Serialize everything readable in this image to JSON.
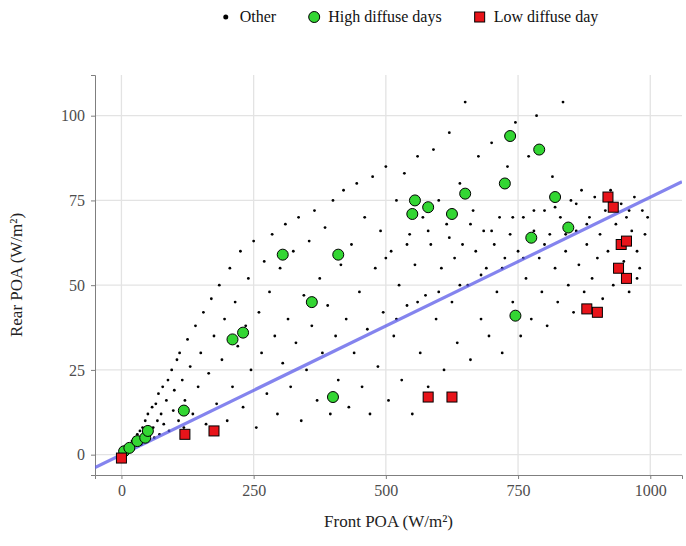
{
  "chart_data": {
    "type": "scatter",
    "x_label": "Front POA (W/m²)",
    "y_label": "Rear POA (W/m²)",
    "xlim": [
      -50,
      1060
    ],
    "ylim": [
      -6,
      112
    ],
    "xticks": [
      0,
      250,
      500,
      750,
      1000
    ],
    "yticks": [
      0,
      25,
      50,
      75,
      100
    ],
    "grid": true,
    "legend": "top",
    "series": [
      {
        "name": "Other",
        "color": "#000000",
        "marker": "dot",
        "x": [
          2,
          5,
          8,
          10,
          12,
          15,
          18,
          20,
          22,
          25,
          28,
          30,
          33,
          35,
          38,
          40,
          42,
          45,
          48,
          50,
          55,
          58,
          60,
          62,
          65,
          68,
          70,
          72,
          75,
          78,
          80,
          85,
          88,
          90,
          95,
          98,
          100,
          105,
          108,
          110,
          115,
          118,
          120,
          125,
          130,
          135,
          140,
          145,
          150,
          155,
          160,
          165,
          170,
          175,
          180,
          185,
          190,
          195,
          200,
          205,
          210,
          215,
          220,
          225,
          230,
          235,
          240,
          245,
          250,
          255,
          260,
          265,
          270,
          275,
          280,
          285,
          290,
          295,
          300,
          305,
          310,
          315,
          320,
          325,
          330,
          335,
          340,
          345,
          350,
          355,
          360,
          365,
          370,
          375,
          380,
          385,
          390,
          395,
          400,
          405,
          410,
          415,
          420,
          425,
          430,
          435,
          440,
          445,
          450,
          455,
          460,
          465,
          470,
          475,
          480,
          485,
          490,
          495,
          500,
          505,
          510,
          515,
          520,
          525,
          530,
          535,
          540,
          545,
          550,
          555,
          560,
          565,
          570,
          575,
          580,
          585,
          590,
          595,
          600,
          605,
          610,
          615,
          620,
          625,
          630,
          635,
          640,
          645,
          650,
          655,
          660,
          665,
          670,
          675,
          680,
          685,
          690,
          695,
          700,
          705,
          710,
          715,
          720,
          725,
          730,
          735,
          740,
          745,
          750,
          755,
          760,
          765,
          770,
          775,
          780,
          785,
          790,
          795,
          800,
          805,
          810,
          815,
          820,
          825,
          830,
          835,
          840,
          845,
          850,
          855,
          860,
          865,
          870,
          875,
          880,
          885,
          890,
          895,
          900,
          905,
          910,
          915,
          920,
          925,
          930,
          935,
          940,
          945,
          950,
          955,
          960,
          965,
          970,
          975,
          980,
          985,
          990,
          975,
          995,
          960,
          520,
          560,
          600,
          640,
          680,
          720,
          760,
          800,
          840,
          880,
          500,
          540,
          580,
          620,
          660,
          700,
          740,
          780,
          820,
          860
        ],
        "values": [
          0,
          1,
          1,
          2,
          1,
          3,
          2,
          4,
          2,
          5,
          3,
          6,
          4,
          7,
          3,
          8,
          5,
          10,
          4,
          12,
          6,
          14,
          8,
          5,
          15,
          10,
          18,
          6,
          12,
          20,
          9,
          16,
          22,
          7,
          25,
          13,
          19,
          28,
          10,
          30,
          22,
          8,
          16,
          34,
          26,
          12,
          38,
          20,
          30,
          42,
          9,
          24,
          46,
          35,
          15,
          50,
          28,
          40,
          10,
          55,
          20,
          45,
          32,
          60,
          14,
          38,
          52,
          25,
          63,
          8,
          42,
          30,
          57,
          18,
          48,
          65,
          35,
          12,
          55,
          27,
          68,
          40,
          20,
          60,
          33,
          70,
          10,
          47,
          25,
          63,
          38,
          72,
          16,
          52,
          30,
          67,
          44,
          12,
          75,
          35,
          22,
          56,
          78,
          40,
          14,
          62,
          30,
          80,
          48,
          20,
          70,
          37,
          12,
          82,
          55,
          26,
          66,
          42,
          85,
          16,
          60,
          35,
          75,
          50,
          22,
          83,
          44,
          65,
          12,
          56,
          88,
          30,
          70,
          47,
          20,
          62,
          90,
          40,
          75,
          55,
          25,
          68,
          95,
          45,
          58,
          33,
          80,
          62,
          104,
          50,
          28,
          72,
          60,
          88,
          40,
          66,
          55,
          35,
          92,
          62,
          48,
          70,
          30,
          58,
          85,
          65,
          45,
          98,
          60,
          35,
          70,
          52,
          88,
          40,
          66,
          100,
          58,
          48,
          72,
          38,
          65,
          82,
          55,
          45,
          70,
          104,
          60,
          50,
          75,
          42,
          66,
          56,
          78,
          48,
          62,
          70,
          52,
          76,
          58,
          65,
          46,
          72,
          60,
          78,
          50,
          68,
          63,
          74,
          57,
          70,
          48,
          66,
          76,
          60,
          55,
          72,
          65,
          52,
          70,
          72,
          40,
          45,
          48,
          50,
          53,
          55,
          58,
          62,
          65,
          68,
          58,
          62,
          66,
          64,
          68,
          66,
          70,
          72,
          73,
          74
        ]
      },
      {
        "type": "line",
        "color": "#5b5be8",
        "line_style": "solid",
        "x": [
          -50,
          1060
        ],
        "values": [
          -3.8,
          80.5
        ]
      },
      {
        "name": "High diffuse days",
        "color": "#33d633",
        "marker": "circle",
        "x": [
          5,
          15,
          30,
          45,
          50,
          118,
          210,
          230,
          305,
          360,
          400,
          410,
          550,
          555,
          580,
          625,
          650,
          725,
          735,
          745,
          775,
          790,
          820,
          845
        ],
        "values": [
          1,
          2,
          4,
          5,
          7,
          13,
          34,
          36,
          59,
          45,
          17,
          59,
          71,
          75,
          73,
          71,
          77,
          80,
          94,
          41,
          64,
          90,
          76,
          67
        ]
      },
      {
        "name": "Low diffuse day",
        "color": "#e8141a",
        "marker": "square",
        "x": [
          0,
          120,
          175,
          580,
          625,
          880,
          900,
          920,
          930,
          940,
          945,
          955,
          955
        ],
        "values": [
          -1,
          6,
          7,
          17,
          17,
          43,
          42,
          76,
          73,
          55,
          62,
          52,
          63
        ]
      }
    ]
  }
}
